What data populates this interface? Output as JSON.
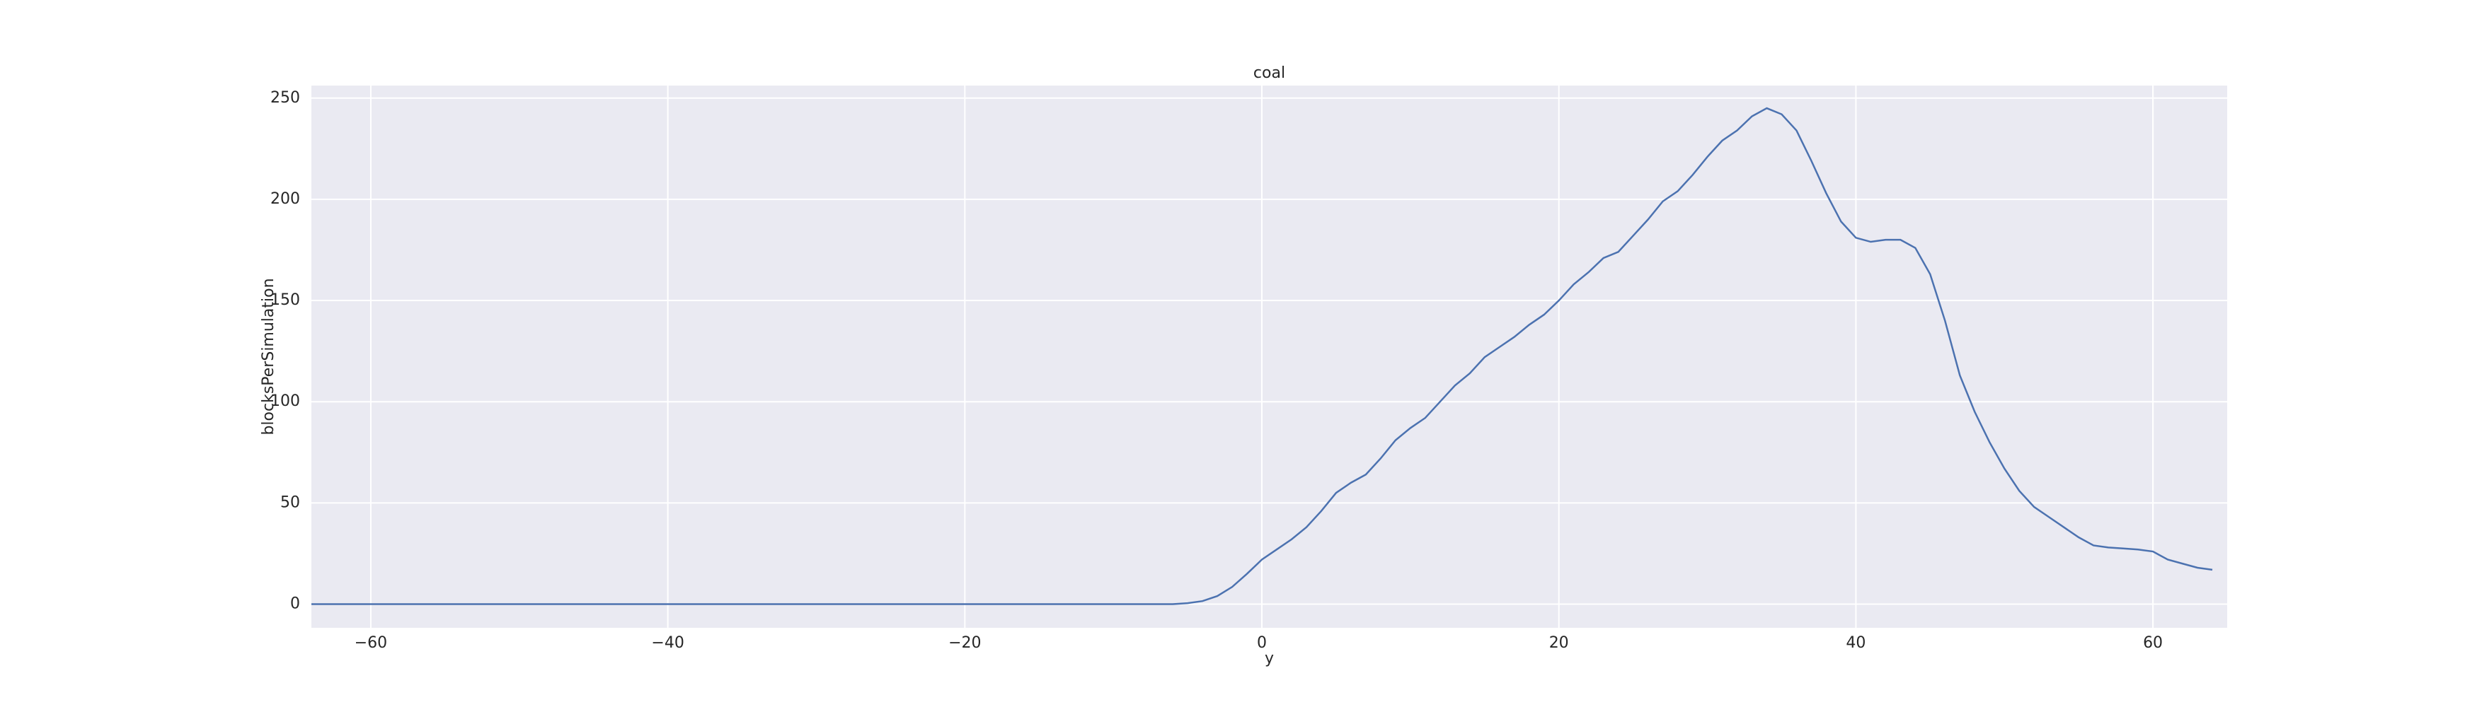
{
  "chart_data": {
    "type": "line",
    "title": "coal",
    "x_label": "y",
    "y_label": "blocksPerSimulation",
    "x": [
      -64,
      -63,
      -62,
      -61,
      -60,
      -59,
      -58,
      -57,
      -56,
      -55,
      -54,
      -53,
      -52,
      -51,
      -50,
      -49,
      -48,
      -47,
      -46,
      -45,
      -44,
      -43,
      -42,
      -41,
      -40,
      -39,
      -38,
      -37,
      -36,
      -35,
      -34,
      -33,
      -32,
      -31,
      -30,
      -29,
      -28,
      -27,
      -26,
      -25,
      -24,
      -23,
      -22,
      -21,
      -20,
      -19,
      -18,
      -17,
      -16,
      -15,
      -14,
      -13,
      -12,
      -11,
      -10,
      -9,
      -8,
      -7,
      -6,
      -5,
      -4,
      -3,
      -2,
      -1,
      0,
      1,
      2,
      3,
      4,
      5,
      6,
      7,
      8,
      9,
      10,
      11,
      12,
      13,
      14,
      15,
      16,
      17,
      18,
      19,
      20,
      21,
      22,
      23,
      24,
      25,
      26,
      27,
      28,
      29,
      30,
      31,
      32,
      33,
      34,
      35,
      36,
      37,
      38,
      39,
      40,
      41,
      42,
      43,
      44,
      45,
      46,
      47,
      48,
      49,
      50,
      51,
      52,
      53,
      54,
      55,
      56,
      57,
      58,
      59,
      60,
      61,
      62,
      63,
      64
    ],
    "values": [
      0,
      0,
      0,
      0,
      0,
      0,
      0,
      0,
      0,
      0,
      0,
      0,
      0,
      0,
      0,
      0,
      0,
      0,
      0,
      0,
      0,
      0,
      0,
      0,
      0,
      0,
      0,
      0,
      0,
      0,
      0,
      0,
      0,
      0,
      0,
      0,
      0,
      0,
      0,
      0,
      0,
      0,
      0,
      0,
      0,
      0,
      0,
      0,
      0,
      0,
      0,
      0,
      0,
      0,
      0,
      0,
      0,
      0,
      0,
      0.5,
      1.5,
      4,
      8.5,
      15,
      22,
      27,
      32,
      38,
      46,
      55,
      60,
      64,
      72,
      81,
      87,
      92,
      100,
      108,
      114,
      122,
      127,
      132,
      138,
      143,
      150,
      158,
      164,
      171,
      174,
      182,
      190,
      199,
      204,
      212,
      221,
      229,
      234,
      241,
      245,
      242,
      234,
      219,
      203,
      189,
      181,
      179,
      180,
      180,
      176,
      163,
      140,
      113,
      95,
      80,
      67,
      56,
      48,
      43,
      38,
      33,
      29,
      28,
      27.5,
      27,
      26,
      22,
      20,
      18,
      17
    ],
    "color": "#4c72b0",
    "xlim": [
      -64,
      65
    ],
    "ylim": [
      -11.7,
      256.2
    ],
    "xticks": [
      {
        "value": -60,
        "label": "−60"
      },
      {
        "value": -40,
        "label": "−40"
      },
      {
        "value": -20,
        "label": "−20"
      },
      0,
      20,
      40,
      60
    ],
    "yticks": [
      0,
      50,
      100,
      150,
      200,
      250
    ],
    "grid": true
  }
}
